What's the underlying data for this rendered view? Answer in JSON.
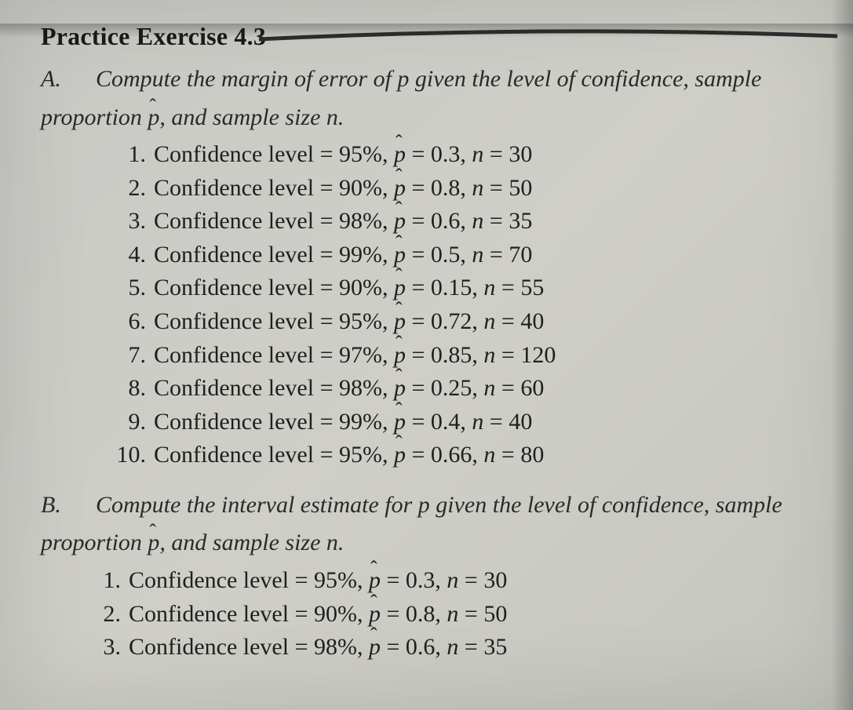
{
  "background_color": "#cacbc4",
  "text_color": "#2a2a2a",
  "heading_color": "#1a1a1a",
  "font_family": "Times New Roman",
  "heading_fontsize": 32,
  "body_fontsize": 30,
  "heading": "Practice Exercise 4.3",
  "sectionA": {
    "letter": "A.",
    "intro_line1": "Compute the margin of error of p given the level of confidence, sample",
    "intro_line2_prefix": "proportion ",
    "intro_line2_phat": "p",
    "intro_line2_suffix": ", and sample size n.",
    "items": [
      {
        "num": "1.",
        "cl": "95%",
        "phat": "0.3",
        "n": "30"
      },
      {
        "num": "2.",
        "cl": "90%",
        "phat": "0.8",
        "n": "50"
      },
      {
        "num": "3.",
        "cl": "98%",
        "phat": "0.6",
        "n": "35"
      },
      {
        "num": "4.",
        "cl": "99%",
        "phat": "0.5",
        "n": "70"
      },
      {
        "num": "5.",
        "cl": "90%",
        "phat": "0.15",
        "n": "55"
      },
      {
        "num": "6.",
        "cl": "95%",
        "phat": "0.72",
        "n": "40"
      },
      {
        "num": "7.",
        "cl": "97%",
        "phat": "0.85",
        "n": "120"
      },
      {
        "num": "8.",
        "cl": "98%",
        "phat": "0.25",
        "n": "60"
      },
      {
        "num": "9.",
        "cl": "99%",
        "phat": "0.4",
        "n": "40"
      },
      {
        "num": "10.",
        "cl": "95%",
        "phat": "0.66",
        "n": "80"
      }
    ]
  },
  "sectionB": {
    "letter": "B.",
    "intro_line1": "Compute the interval estimate for p given the level of confidence, sample",
    "intro_line2_prefix": "proportion ",
    "intro_line2_phat": "p",
    "intro_line2_suffix": ", and sample size n.",
    "items": [
      {
        "num": "1.",
        "cl": "95%",
        "phat": "0.3",
        "n": "30"
      },
      {
        "num": "2.",
        "cl": "90%",
        "phat": "0.8",
        "n": "50"
      },
      {
        "num": "3.",
        "cl": "98%",
        "phat": "0.6",
        "n": "35"
      }
    ]
  },
  "item_template": {
    "label": "Confidence level",
    "eq": " = ",
    "sep": ", ",
    "phat_sym": "p",
    "n_sym": "n"
  },
  "curve_stroke": "#2b2b2b",
  "curve_width": 5
}
